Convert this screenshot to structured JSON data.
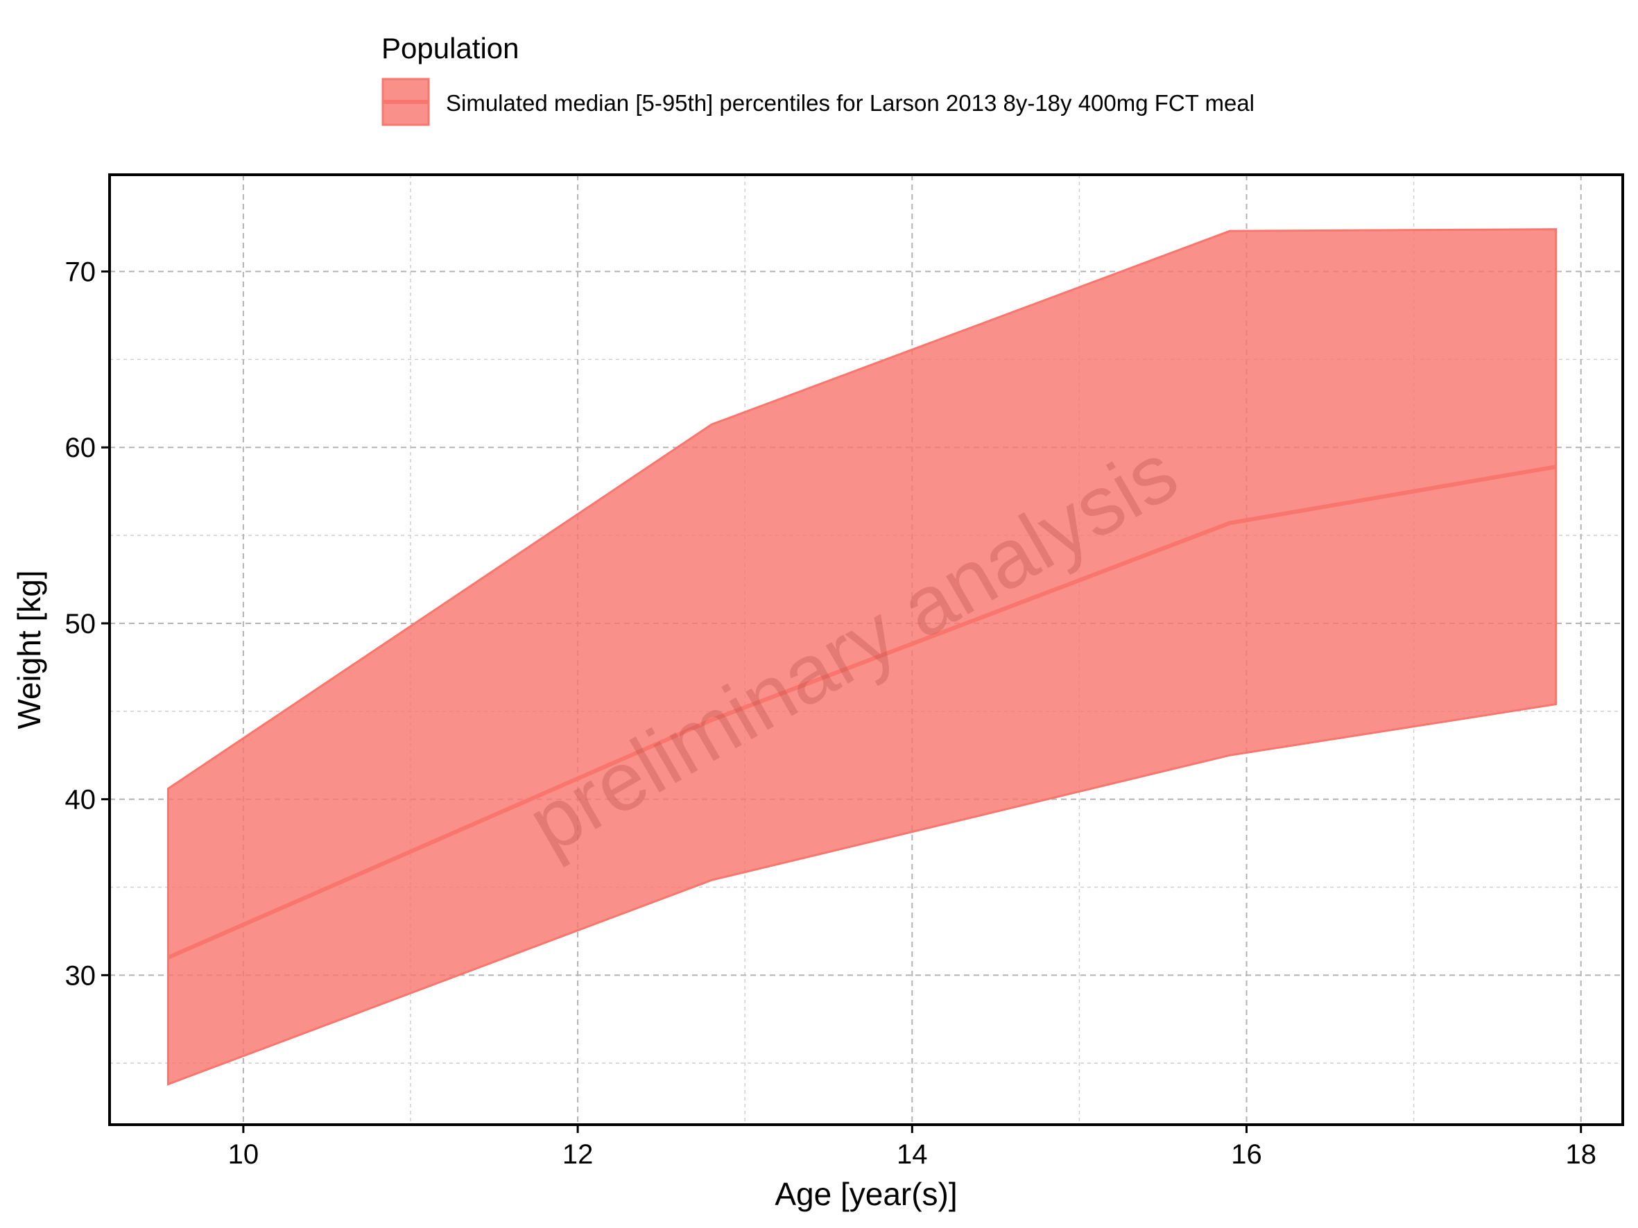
{
  "chart_data": {
    "type": "area",
    "xlabel": "Age [year(s)]",
    "ylabel": "Weight [kg]",
    "xlim": [
      9.2,
      18.25
    ],
    "ylim": [
      21.5,
      75.5
    ],
    "x_ticks": [
      10,
      12,
      14,
      16,
      18
    ],
    "y_ticks": [
      30,
      40,
      50,
      60,
      70
    ],
    "x_minor_ticks": [
      11,
      13,
      15,
      17
    ],
    "y_minor_ticks": [
      25,
      35,
      45,
      55,
      65
    ],
    "grid": true,
    "legend": {
      "title": "Population",
      "position": "top",
      "entries": [
        "Simulated  median [5-95th] percentiles for Larson 2013 8y-18y 400mg FCT meal"
      ]
    },
    "watermark": "preliminary analysis",
    "series": [
      {
        "name": "Simulated  median [5-95th] percentiles for Larson 2013 8y-18y 400mg FCT meal",
        "color": "#f8766d",
        "x": [
          9.55,
          12.8,
          15.9,
          17.85
        ],
        "median": [
          31.0,
          44.5,
          55.7,
          58.9
        ],
        "lower": [
          23.8,
          35.4,
          42.5,
          45.4
        ],
        "upper": [
          40.6,
          61.3,
          72.3,
          72.4
        ]
      }
    ]
  }
}
